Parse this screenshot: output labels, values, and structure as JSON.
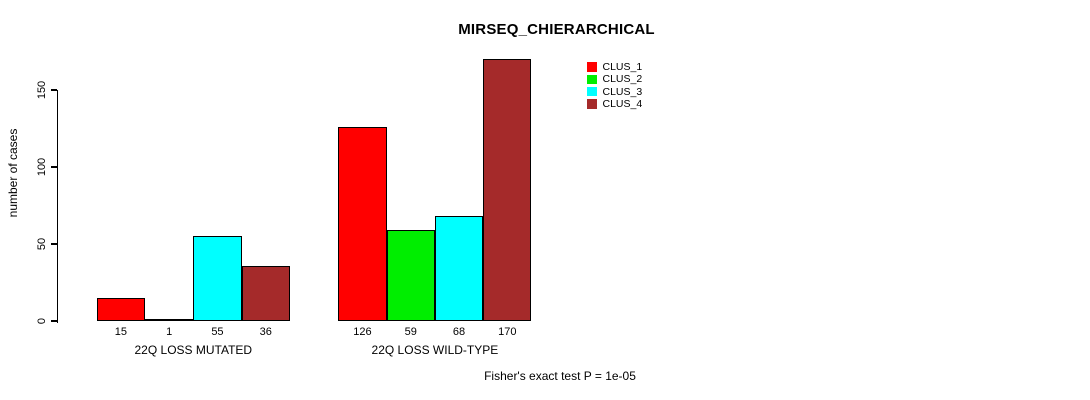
{
  "chart_data": {
    "type": "bar",
    "title": "MIRSEQ_CHIERARCHICAL",
    "xlabel": "",
    "ylabel": "number of cases",
    "categories": [
      "22Q LOSS MUTATED",
      "22Q LOSS WILD-TYPE"
    ],
    "series": [
      {
        "name": "CLUS_1",
        "color": "#FF0000",
        "values": [
          15,
          126
        ]
      },
      {
        "name": "CLUS_2",
        "color": "#00EE00",
        "values": [
          1,
          59
        ]
      },
      {
        "name": "CLUS_3",
        "color": "#00FFFF",
        "values": [
          55,
          68
        ]
      },
      {
        "name": "CLUS_4",
        "color": "#A52A2A",
        "values": [
          36,
          170
        ]
      }
    ],
    "bar_value_labels": [
      [
        15,
        1,
        55,
        36
      ],
      [
        126,
        59,
        68,
        170
      ]
    ],
    "yticks": [
      0,
      50,
      100,
      150
    ],
    "ylim": [
      0,
      175
    ],
    "grid": false,
    "legend_position": "top-right",
    "annotation": "Fisher's exact test P = 1e-05"
  },
  "colors": {
    "background": "#FFFFFF",
    "axis": "#000000",
    "text": "#000000",
    "bar_outline": "#000000"
  }
}
